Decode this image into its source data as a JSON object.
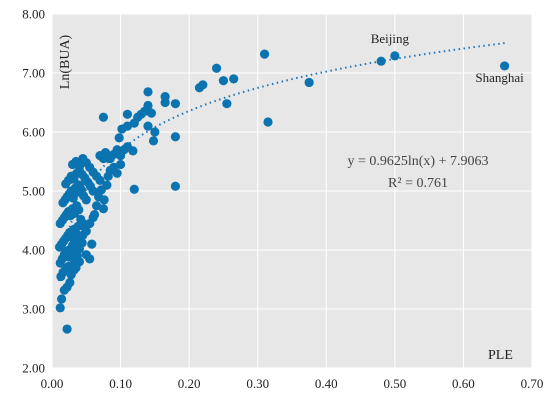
{
  "chart_data": {
    "type": "scatter",
    "xlabel": "PLE",
    "ylabel": "Ln(BUA)",
    "xlim": [
      0,
      0.7
    ],
    "ylim": [
      2,
      8
    ],
    "x_ticks": [
      "0.00",
      "0.10",
      "0.20",
      "0.30",
      "0.40",
      "0.50",
      "0.60",
      "0.70"
    ],
    "y_ticks": [
      "2.00",
      "3.00",
      "4.00",
      "5.00",
      "6.00",
      "7.00",
      "8.00"
    ],
    "grid": true,
    "point_color": "#0B73B0",
    "background_color": "#E7E7E7",
    "grid_color": "#FFFFFF",
    "trendline": {
      "type": "logarithmic",
      "a": 0.9625,
      "b": 7.9063,
      "x_range": [
        0.01,
        0.66
      ],
      "equation": "y = 0.9625ln(x) + 7.9063",
      "r_squared": "R² = 0.761",
      "style": "dotted",
      "color": "#1F75B6"
    },
    "annotations": [
      {
        "text": "Beijing",
        "x": 0.5,
        "y": 7.29
      },
      {
        "text": "Shanghai",
        "x": 0.66,
        "y": 7.12
      }
    ],
    "points": [
      [
        0.012,
        3.02
      ],
      [
        0.022,
        2.66
      ],
      [
        0.014,
        3.17
      ],
      [
        0.018,
        3.32
      ],
      [
        0.022,
        3.37
      ],
      [
        0.026,
        3.45
      ],
      [
        0.013,
        3.55
      ],
      [
        0.016,
        3.62
      ],
      [
        0.02,
        3.68
      ],
      [
        0.024,
        3.72
      ],
      [
        0.028,
        3.58
      ],
      [
        0.032,
        3.66
      ],
      [
        0.012,
        3.78
      ],
      [
        0.015,
        3.85
      ],
      [
        0.018,
        3.92
      ],
      [
        0.021,
        3.98
      ],
      [
        0.025,
        3.88
      ],
      [
        0.029,
        3.95
      ],
      [
        0.033,
        3.82
      ],
      [
        0.037,
        3.9
      ],
      [
        0.011,
        4.05
      ],
      [
        0.014,
        4.1
      ],
      [
        0.017,
        4.15
      ],
      [
        0.02,
        4.2
      ],
      [
        0.023,
        4.25
      ],
      [
        0.026,
        4.3
      ],
      [
        0.029,
        4.22
      ],
      [
        0.032,
        4.35
      ],
      [
        0.035,
        4.28
      ],
      [
        0.038,
        4.4
      ],
      [
        0.041,
        4.18
      ],
      [
        0.044,
        4.12
      ],
      [
        0.012,
        4.45
      ],
      [
        0.015,
        4.5
      ],
      [
        0.018,
        4.55
      ],
      [
        0.021,
        4.6
      ],
      [
        0.024,
        4.65
      ],
      [
        0.027,
        4.58
      ],
      [
        0.03,
        4.7
      ],
      [
        0.033,
        4.62
      ],
      [
        0.036,
        4.75
      ],
      [
        0.039,
        4.68
      ],
      [
        0.042,
        4.52
      ],
      [
        0.045,
        4.45
      ],
      [
        0.048,
        4.38
      ],
      [
        0.016,
        4.8
      ],
      [
        0.019,
        4.85
      ],
      [
        0.022,
        4.9
      ],
      [
        0.025,
        4.95
      ],
      [
        0.028,
        5.0
      ],
      [
        0.031,
        4.88
      ],
      [
        0.034,
        5.05
      ],
      [
        0.037,
        4.98
      ],
      [
        0.04,
        5.1
      ],
      [
        0.043,
        5.02
      ],
      [
        0.046,
        4.92
      ],
      [
        0.05,
        4.85
      ],
      [
        0.02,
        5.12
      ],
      [
        0.024,
        5.18
      ],
      [
        0.028,
        5.25
      ],
      [
        0.032,
        5.2
      ],
      [
        0.036,
        5.3
      ],
      [
        0.04,
        5.35
      ],
      [
        0.044,
        5.28
      ],
      [
        0.048,
        5.22
      ],
      [
        0.052,
        5.15
      ],
      [
        0.056,
        5.08
      ],
      [
        0.06,
        5.0
      ],
      [
        0.03,
        5.45
      ],
      [
        0.035,
        5.5
      ],
      [
        0.04,
        5.42
      ],
      [
        0.045,
        5.55
      ],
      [
        0.05,
        5.48
      ],
      [
        0.055,
        5.4
      ],
      [
        0.06,
        5.32
      ],
      [
        0.065,
        5.25
      ],
      [
        0.07,
        5.18
      ],
      [
        0.025,
        4.0
      ],
      [
        0.03,
        4.08
      ],
      [
        0.035,
        4.15
      ],
      [
        0.04,
        4.02
      ],
      [
        0.045,
        4.25
      ],
      [
        0.05,
        4.32
      ],
      [
        0.055,
        4.45
      ],
      [
        0.06,
        4.55
      ],
      [
        0.035,
        3.7
      ],
      [
        0.04,
        3.8
      ],
      [
        0.05,
        3.92
      ],
      [
        0.055,
        3.85
      ],
      [
        0.058,
        4.1
      ],
      [
        0.062,
        4.6
      ],
      [
        0.065,
        4.75
      ],
      [
        0.068,
        4.9
      ],
      [
        0.072,
        5.02
      ],
      [
        0.076,
        4.85
      ],
      [
        0.08,
        5.1
      ],
      [
        0.075,
        4.7
      ],
      [
        0.082,
        5.25
      ],
      [
        0.085,
        5.35
      ],
      [
        0.09,
        5.4
      ],
      [
        0.095,
        5.3
      ],
      [
        0.1,
        5.45
      ],
      [
        0.07,
        5.6
      ],
      [
        0.075,
        5.55
      ],
      [
        0.078,
        5.65
      ],
      [
        0.085,
        5.55
      ],
      [
        0.09,
        5.62
      ],
      [
        0.095,
        5.7
      ],
      [
        0.1,
        5.6
      ],
      [
        0.105,
        5.7
      ],
      [
        0.11,
        5.75
      ],
      [
        0.118,
        5.68
      ],
      [
        0.098,
        5.9
      ],
      [
        0.102,
        6.05
      ],
      [
        0.11,
        6.1
      ],
      [
        0.12,
        6.15
      ],
      [
        0.125,
        6.25
      ],
      [
        0.13,
        6.3
      ],
      [
        0.145,
        6.32
      ],
      [
        0.14,
        6.1
      ],
      [
        0.15,
        6.0
      ],
      [
        0.148,
        5.85
      ],
      [
        0.135,
        6.35
      ],
      [
        0.14,
        6.45
      ],
      [
        0.075,
        6.25
      ],
      [
        0.11,
        6.3
      ],
      [
        0.14,
        6.68
      ],
      [
        0.165,
        6.6
      ],
      [
        0.165,
        6.5
      ],
      [
        0.18,
        6.48
      ],
      [
        0.18,
        5.92
      ],
      [
        0.12,
        5.03
      ],
      [
        0.18,
        5.08
      ],
      [
        0.215,
        6.75
      ],
      [
        0.22,
        6.8
      ],
      [
        0.24,
        7.08
      ],
      [
        0.25,
        6.87
      ],
      [
        0.265,
        6.9
      ],
      [
        0.255,
        6.48
      ],
      [
        0.31,
        7.32
      ],
      [
        0.315,
        6.17
      ],
      [
        0.375,
        6.84
      ],
      [
        0.48,
        7.2
      ],
      [
        0.5,
        7.29
      ],
      [
        0.66,
        7.12
      ]
    ]
  }
}
